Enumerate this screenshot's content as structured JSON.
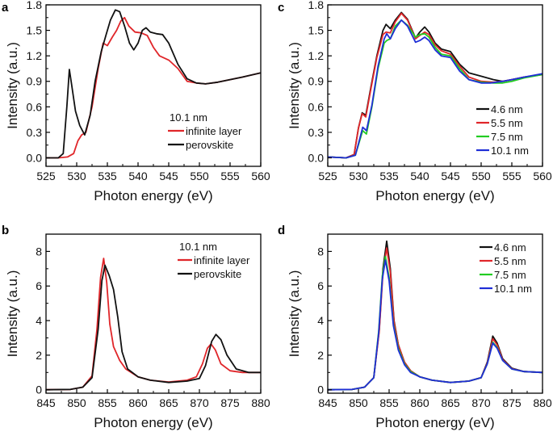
{
  "chart_data": [
    {
      "id": "a",
      "type": "line",
      "panel_label": "a",
      "xlabel": "Photon energy (eV)",
      "ylabel": "Intensity (a.u.)",
      "xlim": [
        525,
        560
      ],
      "ylim": [
        -0.1,
        1.8
      ],
      "xticks": [
        525,
        530,
        535,
        540,
        545,
        550,
        555,
        560
      ],
      "yticks": [
        0.0,
        0.3,
        0.6,
        0.9,
        1.2,
        1.5,
        1.8
      ],
      "ytick_labels": [
        "0.0",
        "0.3",
        "0.6",
        "0.9",
        "1.2",
        "1.5",
        "1.8"
      ],
      "legend_title": "10.1 nm",
      "legend_position": "lower-right",
      "series": [
        {
          "name": "infinite layer",
          "color": "#e0262a",
          "x": [
            525,
            527,
            528.5,
            529.5,
            530.2,
            530.8,
            531.5,
            532.5,
            533.5,
            534.3,
            535,
            535.8,
            536.5,
            537.2,
            537.8,
            538.5,
            539.5,
            540.5,
            541.5,
            542.5,
            543.5,
            545,
            546.5,
            548,
            549.5,
            551,
            553,
            555,
            557,
            560
          ],
          "y": [
            0.0,
            0.0,
            0.01,
            0.05,
            0.2,
            0.27,
            0.3,
            0.6,
            1.05,
            1.35,
            1.32,
            1.42,
            1.5,
            1.61,
            1.65,
            1.55,
            1.48,
            1.47,
            1.44,
            1.3,
            1.2,
            1.15,
            1.05,
            0.9,
            0.88,
            0.87,
            0.89,
            0.92,
            0.95,
            1.0
          ]
        },
        {
          "name": "perovskite",
          "color": "#111111",
          "x": [
            525,
            527,
            527.8,
            528.4,
            528.8,
            529.2,
            529.8,
            530.5,
            531.3,
            532.2,
            533,
            534,
            534.8,
            535.5,
            536.3,
            537,
            537.8,
            538.6,
            539.3,
            540,
            540.7,
            541.3,
            542,
            543,
            544,
            545,
            546.5,
            548,
            549.5,
            551,
            553,
            555,
            557,
            560
          ],
          "y": [
            0.0,
            0.0,
            0.05,
            0.6,
            1.04,
            0.85,
            0.55,
            0.38,
            0.27,
            0.5,
            0.9,
            1.25,
            1.45,
            1.62,
            1.74,
            1.72,
            1.55,
            1.35,
            1.27,
            1.35,
            1.5,
            1.53,
            1.48,
            1.46,
            1.45,
            1.35,
            1.1,
            0.93,
            0.88,
            0.87,
            0.89,
            0.92,
            0.95,
            1.0
          ]
        }
      ]
    },
    {
      "id": "b",
      "type": "line",
      "panel_label": "b",
      "xlabel": "Photon energy (eV)",
      "ylabel": "Intensity (a.u.)",
      "xlim": [
        845,
        880
      ],
      "ylim": [
        -0.2,
        9.0
      ],
      "xticks": [
        845,
        850,
        855,
        860,
        865,
        870,
        875,
        880
      ],
      "yticks": [
        0,
        2,
        4,
        6,
        8
      ],
      "ytick_labels": [
        "0",
        "2",
        "4",
        "6",
        "8"
      ],
      "legend_title": "10.1 nm",
      "legend_position": "top-right",
      "series": [
        {
          "name": "infinite layer",
          "color": "#e0262a",
          "x": [
            845,
            849,
            851,
            852.5,
            853.3,
            853.9,
            854.4,
            854.9,
            855.4,
            856,
            857,
            858,
            860,
            862,
            865,
            868,
            869.5,
            870.5,
            871.3,
            871.9,
            872.6,
            873.5,
            875,
            877,
            880
          ],
          "y": [
            0.0,
            0.02,
            0.15,
            0.8,
            3.5,
            6.5,
            7.6,
            6.2,
            3.8,
            2.5,
            1.7,
            1.2,
            0.75,
            0.55,
            0.45,
            0.55,
            0.75,
            1.5,
            2.4,
            2.65,
            2.3,
            1.5,
            1.1,
            1.0,
            1.0
          ]
        },
        {
          "name": "perovskite",
          "color": "#111111",
          "x": [
            845,
            849,
            851,
            852.5,
            853.5,
            854.1,
            854.6,
            855.3,
            856,
            856.7,
            857.4,
            858.3,
            860,
            862,
            865,
            868,
            870,
            871,
            872,
            872.7,
            873.5,
            874.5,
            876,
            878,
            880
          ],
          "y": [
            0.0,
            0.02,
            0.15,
            0.7,
            3.5,
            6.3,
            7.2,
            6.6,
            5.8,
            4.2,
            2.2,
            1.2,
            0.75,
            0.55,
            0.42,
            0.5,
            0.65,
            1.4,
            2.8,
            3.2,
            2.9,
            2.0,
            1.2,
            1.0,
            1.0
          ]
        }
      ]
    },
    {
      "id": "c",
      "type": "line",
      "panel_label": "c",
      "xlabel": "Photon energy (eV)",
      "ylabel": "Intensity (a.u.)",
      "xlim": [
        525,
        560
      ],
      "ylim": [
        -0.1,
        1.8
      ],
      "xticks": [
        525,
        530,
        535,
        540,
        545,
        550,
        555,
        560
      ],
      "yticks": [
        0.0,
        0.3,
        0.6,
        0.9,
        1.2,
        1.5,
        1.8
      ],
      "ytick_labels": [
        "0.0",
        "0.3",
        "0.6",
        "0.9",
        "1.2",
        "1.5",
        "1.8"
      ],
      "legend_position": "lower-right",
      "series": [
        {
          "name": "4.6 nm",
          "color": "#111111",
          "x": [
            525,
            528,
            529.3,
            530,
            530.6,
            531.2,
            532,
            533,
            534,
            534.5,
            535.2,
            536,
            537,
            538,
            539.3,
            540,
            540.8,
            541.5,
            542.5,
            543.5,
            545,
            546.5,
            548,
            550,
            552,
            553.5,
            555,
            557,
            560
          ],
          "y": [
            0.01,
            0.0,
            0.04,
            0.35,
            0.53,
            0.5,
            0.82,
            1.2,
            1.5,
            1.57,
            1.52,
            1.62,
            1.71,
            1.63,
            1.41,
            1.48,
            1.54,
            1.48,
            1.35,
            1.28,
            1.25,
            1.1,
            1.0,
            0.96,
            0.92,
            0.9,
            0.92,
            0.95,
            0.98
          ]
        },
        {
          "name": "5.5 nm",
          "color": "#e0262a",
          "x": [
            525,
            528,
            529.3,
            530,
            530.6,
            531.2,
            532,
            533,
            534,
            534.5,
            535.2,
            536,
            537,
            538,
            539.3,
            540,
            540.8,
            541.5,
            542.5,
            543.5,
            545,
            546.5,
            548,
            550,
            552,
            553.5,
            555,
            557,
            560
          ],
          "y": [
            0.01,
            0.0,
            0.04,
            0.35,
            0.52,
            0.48,
            0.8,
            1.18,
            1.45,
            1.48,
            1.47,
            1.6,
            1.7,
            1.62,
            1.4,
            1.44,
            1.48,
            1.45,
            1.33,
            1.26,
            1.22,
            1.08,
            0.95,
            0.9,
            0.89,
            0.9,
            0.92,
            0.95,
            0.98
          ]
        },
        {
          "name": "7.5 nm",
          "color": "#22cc22",
          "x": [
            525,
            528,
            529.5,
            530.2,
            530.7,
            531.3,
            532.2,
            533.2,
            534.2,
            534.6,
            535.2,
            536,
            537,
            538,
            539.3,
            540,
            540.8,
            541.5,
            542.5,
            543.5,
            545,
            546.5,
            548,
            550,
            552,
            553.5,
            555,
            557,
            560
          ],
          "y": [
            0.01,
            0.0,
            0.03,
            0.2,
            0.32,
            0.28,
            0.6,
            1.05,
            1.35,
            1.38,
            1.4,
            1.55,
            1.62,
            1.56,
            1.42,
            1.45,
            1.46,
            1.42,
            1.3,
            1.22,
            1.2,
            1.05,
            0.92,
            0.89,
            0.88,
            0.88,
            0.9,
            0.94,
            0.98
          ]
        },
        {
          "name": "10.1 nm",
          "color": "#1f2ed6",
          "x": [
            525,
            528,
            529.5,
            530.2,
            530.7,
            531.3,
            532.2,
            533.2,
            534.2,
            534.6,
            535.2,
            536,
            537,
            538,
            539.3,
            540,
            540.8,
            541.5,
            542.5,
            543.5,
            545,
            546.5,
            548,
            550,
            551.5,
            553.5,
            555,
            557,
            560
          ],
          "y": [
            0.01,
            0.0,
            0.03,
            0.22,
            0.36,
            0.32,
            0.62,
            1.08,
            1.4,
            1.46,
            1.4,
            1.52,
            1.62,
            1.55,
            1.36,
            1.38,
            1.42,
            1.38,
            1.27,
            1.2,
            1.18,
            1.02,
            0.92,
            0.88,
            0.88,
            0.9,
            0.92,
            0.95,
            0.99
          ]
        }
      ]
    },
    {
      "id": "d",
      "type": "line",
      "panel_label": "d",
      "xlabel": "Photon energy (eV)",
      "ylabel": "Intensity (a.u.)",
      "xlim": [
        845,
        880
      ],
      "ylim": [
        -0.2,
        9.0
      ],
      "xticks": [
        845,
        850,
        855,
        860,
        865,
        870,
        875,
        880
      ],
      "yticks": [
        0,
        2,
        4,
        6,
        8
      ],
      "ytick_labels": [
        "0",
        "2",
        "4",
        "6",
        "8"
      ],
      "legend_position": "top-right",
      "series": [
        {
          "name": "4.6 nm",
          "color": "#111111",
          "x": [
            845,
            849,
            851,
            852.5,
            853.4,
            854,
            854.6,
            855.2,
            855.8,
            856.5,
            857.5,
            858.5,
            860,
            862,
            865,
            868,
            870,
            871,
            871.9,
            872.6,
            873.5,
            875,
            877,
            880
          ],
          "y": [
            0.0,
            0.02,
            0.15,
            0.7,
            3.5,
            7.0,
            8.6,
            7.0,
            4.0,
            2.6,
            1.6,
            1.1,
            0.75,
            0.55,
            0.42,
            0.5,
            0.7,
            1.6,
            3.1,
            2.7,
            1.8,
            1.25,
            1.05,
            1.0
          ]
        },
        {
          "name": "5.5 nm",
          "color": "#e0262a",
          "x": [
            845,
            849,
            851,
            852.5,
            853.4,
            854,
            854.6,
            855.2,
            855.8,
            856.5,
            857.5,
            858.5,
            860,
            862,
            865,
            868,
            870,
            871,
            871.9,
            872.6,
            873.5,
            875,
            877,
            880
          ],
          "y": [
            0.0,
            0.02,
            0.15,
            0.7,
            3.4,
            6.8,
            8.2,
            6.8,
            3.9,
            2.6,
            1.6,
            1.1,
            0.75,
            0.55,
            0.42,
            0.5,
            0.7,
            1.55,
            2.95,
            2.6,
            1.75,
            1.22,
            1.05,
            1.0
          ]
        },
        {
          "name": "7.5 nm",
          "color": "#22cc22",
          "x": [
            845,
            849,
            851,
            852.5,
            853.3,
            853.9,
            854.4,
            855,
            855.7,
            856.5,
            857.5,
            858.5,
            860,
            862,
            865,
            868,
            870,
            871,
            871.9,
            872.6,
            873.5,
            875,
            877,
            880
          ],
          "y": [
            0.0,
            0.02,
            0.15,
            0.7,
            3.4,
            6.6,
            7.7,
            6.5,
            3.8,
            2.4,
            1.5,
            1.05,
            0.75,
            0.55,
            0.42,
            0.5,
            0.7,
            1.5,
            2.75,
            2.45,
            1.7,
            1.2,
            1.05,
            1.0
          ]
        },
        {
          "name": "10.1 nm",
          "color": "#1f2ed6",
          "x": [
            845,
            849,
            851,
            852.5,
            853.3,
            853.9,
            854.4,
            855,
            855.7,
            856.5,
            857.5,
            858.5,
            860,
            862,
            865,
            868,
            870,
            871,
            871.9,
            872.6,
            873.5,
            875,
            877,
            880
          ],
          "y": [
            0.0,
            0.02,
            0.15,
            0.7,
            3.3,
            6.4,
            7.5,
            6.3,
            3.7,
            2.3,
            1.45,
            1.0,
            0.75,
            0.55,
            0.42,
            0.5,
            0.7,
            1.5,
            2.7,
            2.4,
            1.7,
            1.2,
            1.05,
            1.0
          ]
        }
      ]
    }
  ]
}
